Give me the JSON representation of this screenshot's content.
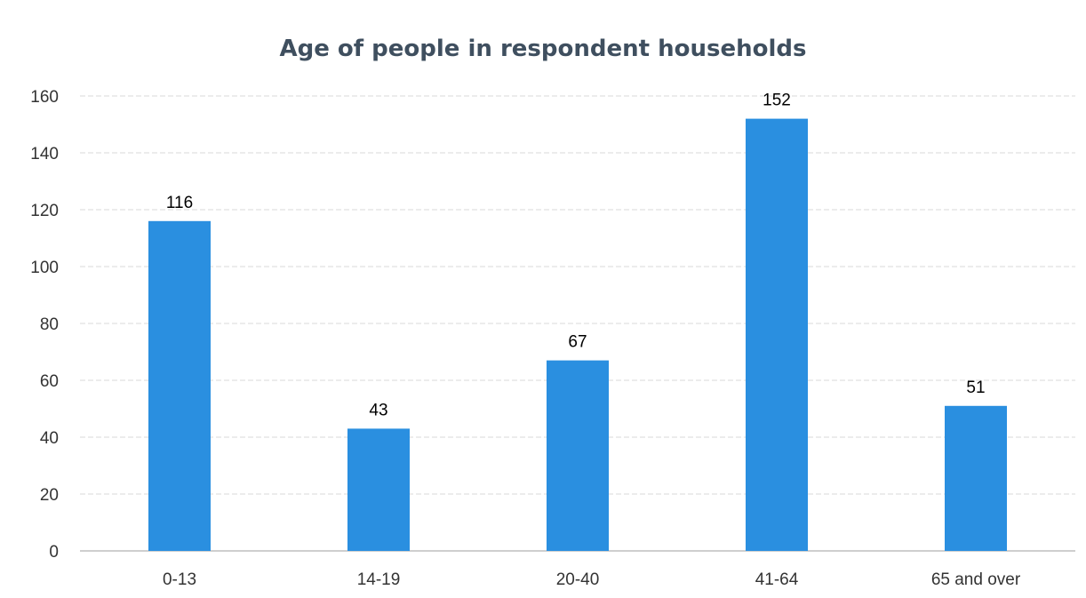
{
  "chart_data": {
    "type": "bar",
    "title": "Age of people in respondent households",
    "xlabel": "",
    "ylabel": "",
    "categories": [
      "0-13",
      "14-19",
      "20-40",
      "41-64",
      "65 and over"
    ],
    "values": [
      116,
      43,
      67,
      152,
      51
    ],
    "data_labels": [
      "116",
      "43",
      "67",
      "152",
      "51"
    ],
    "ylim": [
      0,
      160
    ],
    "yticks": [
      "0",
      "20",
      "40",
      "60",
      "80",
      "100",
      "120",
      "140",
      "160"
    ],
    "grid": true,
    "legend": "none",
    "bar_color": "#2a8fe0",
    "grid_color": "#d9d9d9"
  }
}
